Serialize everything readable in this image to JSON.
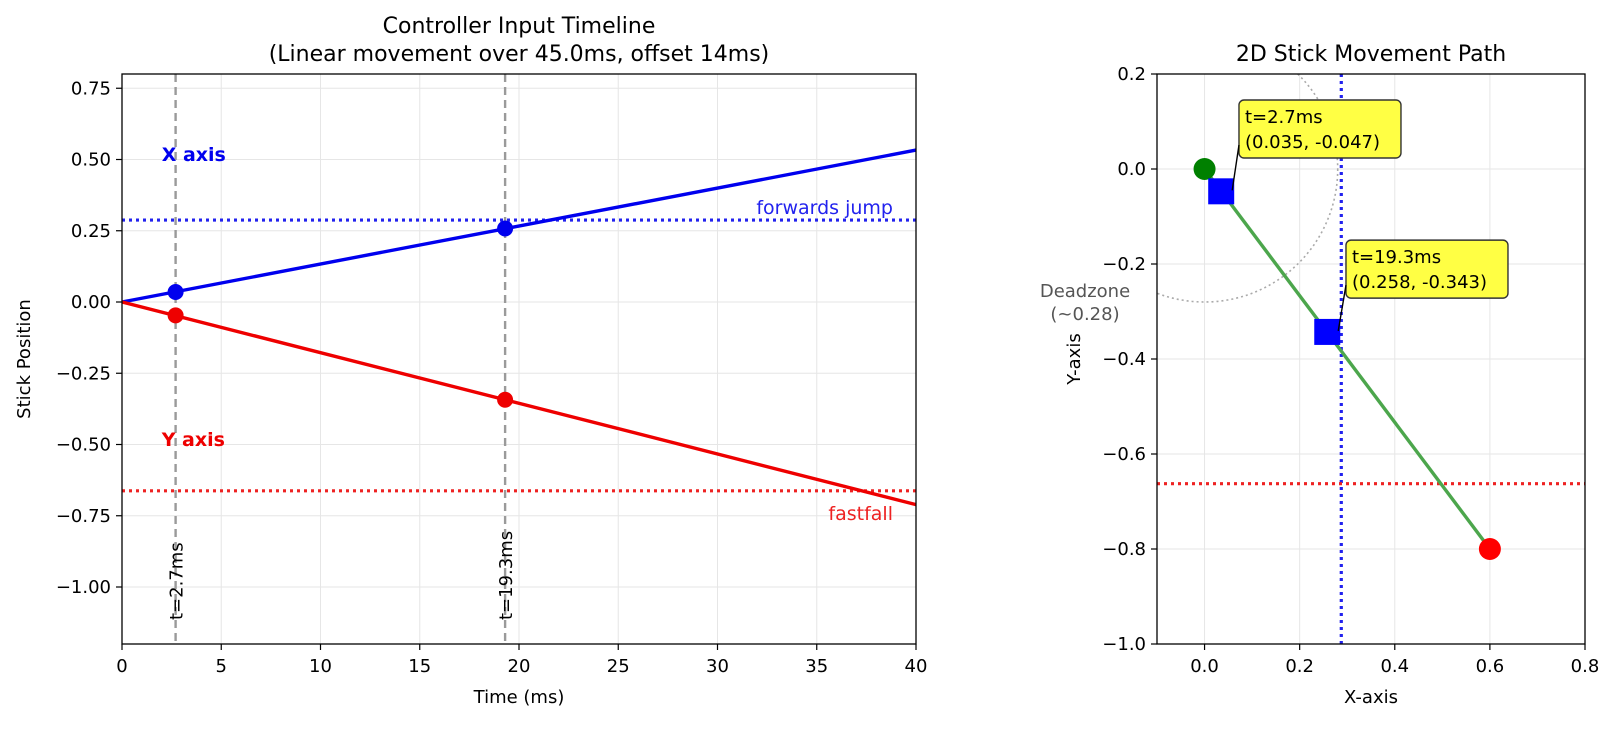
{
  "chart_data": [
    {
      "type": "line",
      "title": "Controller Input Timeline",
      "subtitle": "(Linear movement over 45.0ms, offset 14ms)",
      "xlabel": "Time (ms)",
      "ylabel": "Stick Position",
      "xlim": [
        0,
        40
      ],
      "ylim": [
        -1.2,
        0.8
      ],
      "xticks": [
        0,
        5,
        10,
        15,
        20,
        25,
        30,
        35,
        40
      ],
      "yticks": [
        -1.0,
        -0.75,
        -0.5,
        -0.25,
        0.0,
        0.25,
        0.5,
        0.75
      ],
      "xtick_labels": [
        "0",
        "5",
        "10",
        "15",
        "20",
        "25",
        "30",
        "35",
        "40"
      ],
      "ytick_labels": [
        "−1.00",
        "−0.75",
        "−0.50",
        "−0.25",
        "0.00",
        "0.25",
        "0.50",
        "0.75"
      ],
      "grid": true,
      "series": [
        {
          "name": "X axis",
          "color": "#0000ee",
          "x": [
            0,
            40
          ],
          "y": [
            0,
            0.533
          ]
        },
        {
          "name": "Y axis",
          "color": "#ee0000",
          "x": [
            0,
            40
          ],
          "y": [
            0,
            -0.711
          ]
        }
      ],
      "markers": [
        {
          "series": "X axis",
          "x": 2.7,
          "y": 0.035,
          "color": "#0000ee"
        },
        {
          "series": "X axis",
          "x": 19.3,
          "y": 0.258,
          "color": "#0000ee"
        },
        {
          "series": "Y axis",
          "x": 2.7,
          "y": -0.047,
          "color": "#ee0000"
        },
        {
          "series": "Y axis",
          "x": 19.3,
          "y": -0.343,
          "color": "#ee0000"
        }
      ],
      "hlines": [
        {
          "y": 0.2875,
          "color": "#2222ee",
          "label": "forwards jump"
        },
        {
          "y": -0.6625,
          "color": "#ee2222",
          "label": "fastfall"
        }
      ],
      "vlines": [
        {
          "x": 2.7,
          "label": "t=2.7ms"
        },
        {
          "x": 19.3,
          "label": "t=19.3ms"
        }
      ],
      "text_labels": [
        {
          "text": "X axis",
          "x": 2.0,
          "y": 0.52,
          "color": "#0000ee"
        },
        {
          "text": "Y axis",
          "x": 2.0,
          "y": -0.48,
          "color": "#ee0000"
        }
      ]
    },
    {
      "type": "scatter",
      "title": "2D Stick Movement Path",
      "xlabel": "X-axis",
      "ylabel": "Y-axis",
      "xlim": [
        -0.1,
        0.8
      ],
      "ylim": [
        -1.0,
        0.2
      ],
      "xticks": [
        0.0,
        0.2,
        0.4,
        0.6,
        0.8
      ],
      "yticks": [
        -1.0,
        -0.8,
        -0.6,
        -0.4,
        -0.2,
        0.0,
        0.2
      ],
      "xtick_labels": [
        "0.0",
        "0.2",
        "0.4",
        "0.6",
        "0.8"
      ],
      "ytick_labels": [
        "−1.0",
        "−0.8",
        "−0.6",
        "−0.4",
        "−0.2",
        "0.0",
        "0.2"
      ],
      "grid": true,
      "path": {
        "color": "#4ca64c",
        "x": [
          0.0,
          0.6
        ],
        "y": [
          0.0,
          -0.8
        ]
      },
      "start_point": {
        "x": 0.0,
        "y": 0.0,
        "color": "#008000"
      },
      "end_point": {
        "x": 0.6,
        "y": -0.8,
        "color": "#ff0000"
      },
      "square_points": [
        {
          "x": 0.035,
          "y": -0.047,
          "color": "#0000ff",
          "label_line1": "t=2.7ms",
          "label_line2": "(0.035, -0.047)",
          "label_x": 0.085,
          "label_y": 0.08
        },
        {
          "x": 0.258,
          "y": -0.343,
          "color": "#0000ff",
          "label_line1": "t=19.3ms",
          "label_line2": "(0.258, -0.343)",
          "label_x": 0.31,
          "label_y": -0.215
        }
      ],
      "deadzone": {
        "radius": 0.28,
        "label_line1": "Deadzone",
        "label_line2": "(~0.28)"
      },
      "vline": {
        "x": 0.2875,
        "color": "#2222ee"
      },
      "hline": {
        "y": -0.6625,
        "color": "#ee2222"
      },
      "annotation_bg": "#ffff44"
    }
  ]
}
